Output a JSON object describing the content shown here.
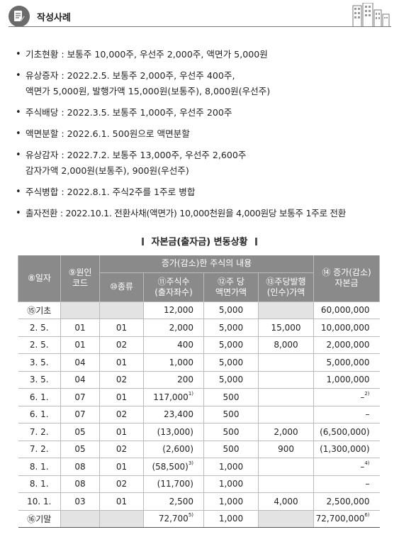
{
  "header": {
    "title": "작성사례"
  },
  "bullets": [
    {
      "lines": [
        "기초현황 : 보통주 10,000주, 우선주 2,000주, 액면가 5,000원"
      ]
    },
    {
      "lines": [
        "유상증자 : 2022.2.5. 보통주 2,000주, 우선주 400주,",
        "액면가 5,000원, 발행가액 15,000원(보통주), 8,000원(우선주)"
      ]
    },
    {
      "lines": [
        "주식배당 : 2022.3.5. 보통주 1,000주, 우선주 200주"
      ]
    },
    {
      "lines": [
        "액면분할 : 2022.6.1. 500원으로 액면분할"
      ]
    },
    {
      "lines": [
        "유상감자 : 2022.7.2. 보통주 13,000주, 우선주 2,600주",
        "감자가액 2,000원(보통주), 900원(우선주)"
      ]
    },
    {
      "lines": [
        "주식병합 : 2022.8.1. 주식2주를 1주로 병합"
      ]
    },
    {
      "lines": [
        "출자전환 : 2022.10.1. 전환사채(액면가) 10,000천원을 4,000원당 보통주 1주로 전환"
      ]
    }
  ],
  "table_title": "자본금(출자금) 변동상황",
  "table": {
    "headers": {
      "date": "⑧일자",
      "cause_line1": "⑨원인",
      "cause_line2": "코드",
      "group": "증가(감소)한 주식의 내용",
      "type": "⑩종류",
      "shares_line1": "⑪주식수",
      "shares_line2": "(출자좌수)",
      "par_line1": "⑫주 당",
      "par_line2": "액면가액",
      "issue_line1": "⑬주당발행",
      "issue_line2": "(인수)가액",
      "capital_line1": "⑭ 증가(감소)",
      "capital_line2": "자본금"
    },
    "rows": [
      {
        "date": "⑮기초",
        "code": "",
        "type": "",
        "shares": "12,000",
        "shares_note": "",
        "par": "5,000",
        "issue": "",
        "capital": "60,000,000",
        "capital_note": ""
      },
      {
        "date": "2.  5.",
        "code": "01",
        "type": "01",
        "shares": "2,000",
        "shares_note": "",
        "par": "5,000",
        "issue": "15,000",
        "capital": "10,000,000",
        "capital_note": ""
      },
      {
        "date": "2.  5.",
        "code": "01",
        "type": "02",
        "shares": "400",
        "shares_note": "",
        "par": "5,000",
        "issue": "8,000",
        "capital": "2,000,000",
        "capital_note": ""
      },
      {
        "date": "3.  5.",
        "code": "04",
        "type": "01",
        "shares": "1,000",
        "shares_note": "",
        "par": "5,000",
        "issue": "",
        "capital": "5,000,000",
        "capital_note": ""
      },
      {
        "date": "3.  5.",
        "code": "04",
        "type": "02",
        "shares": "200",
        "shares_note": "",
        "par": "5,000",
        "issue": "",
        "capital": "1,000,000",
        "capital_note": ""
      },
      {
        "date": "6.  1.",
        "code": "07",
        "type": "01",
        "shares": "117,000",
        "shares_note": "1)",
        "par": "500",
        "issue": "",
        "capital": "–",
        "capital_note": "2)"
      },
      {
        "date": "6.  1.",
        "code": "07",
        "type": "02",
        "shares": "23,400",
        "shares_note": "",
        "par": "500",
        "issue": "",
        "capital": "–",
        "capital_note": ""
      },
      {
        "date": "7.  2.",
        "code": "05",
        "type": "01",
        "shares": "(13,000)",
        "shares_note": "",
        "par": "500",
        "issue": "2,000",
        "capital": "(6,500,000)",
        "capital_note": ""
      },
      {
        "date": "7.  2.",
        "code": "05",
        "type": "02",
        "shares": "(2,600)",
        "shares_note": "",
        "par": "500",
        "issue": "900",
        "capital": "(1,300,000)",
        "capital_note": ""
      },
      {
        "date": "8.  1.",
        "code": "08",
        "type": "01",
        "shares": "(58,500)",
        "shares_note": "3)",
        "par": "1,000",
        "issue": "",
        "capital": "–",
        "capital_note": "4)"
      },
      {
        "date": "8.  1.",
        "code": "08",
        "type": "02",
        "shares": "(11,700)",
        "shares_note": "",
        "par": "1,000",
        "issue": "",
        "capital": "–",
        "capital_note": ""
      },
      {
        "date": "10.  1.",
        "code": "03",
        "type": "01",
        "shares": "2,500",
        "shares_note": "",
        "par": "1,000",
        "issue": "4,000",
        "capital": "2,500,000",
        "capital_note": ""
      },
      {
        "date": "⑯기말",
        "code": "",
        "type": "",
        "shares": "72,700",
        "shares_note": "5)",
        "par": "1,000",
        "issue": "",
        "capital": "72,700,000",
        "capital_note": "6)"
      }
    ]
  },
  "colors": {
    "header_bg": "#8a8a8a",
    "grey_cell": "#e3e3e3",
    "icon_bg": "#6b6b6b"
  }
}
